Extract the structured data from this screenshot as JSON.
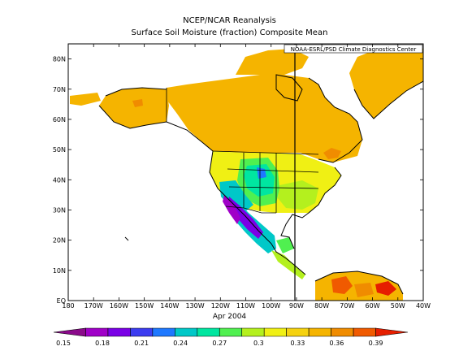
{
  "figure": {
    "title": "NCEP/NCAR Reanalysis",
    "subtitle": "Surface Soil Moisture (fraction) Composite Mean",
    "credit": "NOAA-ESRL/PSD Climate Diagnostics Center",
    "date_label": "Apr 2004"
  },
  "axes": {
    "lat_ticks": [
      "EQ",
      "10N",
      "20N",
      "30N",
      "40N",
      "50N",
      "60N",
      "70N",
      "80N"
    ],
    "lon_ticks": [
      "180",
      "170W",
      "160W",
      "150W",
      "140W",
      "130W",
      "120W",
      "110W",
      "100W",
      "90W",
      "80W",
      "70W",
      "60W",
      "50W",
      "40W"
    ],
    "lon_range": [
      -180,
      -40
    ],
    "lat_range": [
      0,
      85
    ]
  },
  "colorbar": {
    "ticks": [
      "0.15",
      "0.18",
      "0.21",
      "0.24",
      "0.27",
      "0.3",
      "0.33",
      "0.36",
      "0.39"
    ],
    "colors": [
      "#8b0a8b",
      "#a000c8",
      "#7a00e6",
      "#3c3cf0",
      "#1e78ff",
      "#00c8c8",
      "#00e6a0",
      "#50f050",
      "#b4f01e",
      "#f0f014",
      "#f5d20f",
      "#f5b400",
      "#f08c00",
      "#f05a00",
      "#e61e00"
    ]
  },
  "colors": {
    "background": "#ffffff",
    "land_default": "#f5b400"
  }
}
